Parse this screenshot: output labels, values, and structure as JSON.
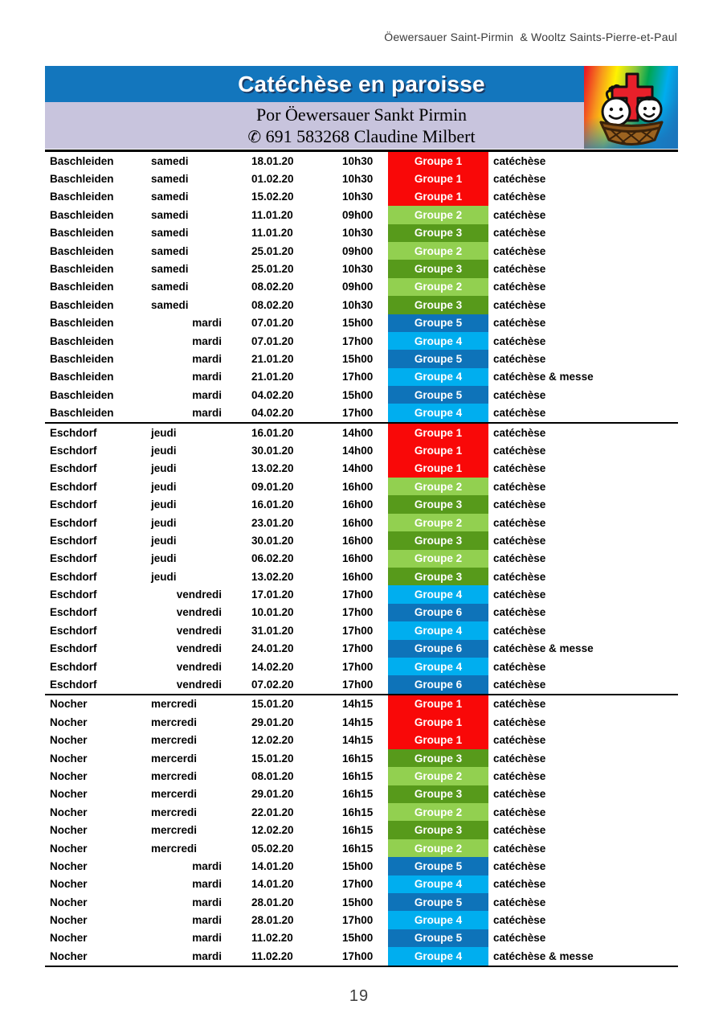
{
  "header": {
    "parishes": "Öewersauer Saint-Pirmin  & Wooltz Saints-Pierre-et-Paul"
  },
  "banner": {
    "title": "Catéchèse en paroisse",
    "subtitle_line1": "Por Öewersauer Sankt Pirmin",
    "phone_icon": "✆",
    "contact": "691 583268 Claudine Milbert"
  },
  "colors": {
    "banner_blue": "#1376bd",
    "banner_lavender": "#c8c4dd",
    "title_shadow": "#1a3a64",
    "g1": "#f90808",
    "g2": "#92d050",
    "g3": "#579a1b",
    "g4": "#00aeef",
    "g5": "#0e73b9",
    "g6": "#0e73b9"
  },
  "table": {
    "sections": [
      {
        "rows": [
          {
            "loc": "Baschleiden",
            "day1": "samedi",
            "day2": "",
            "date": "18.01.20",
            "time": "10h30",
            "group": "Groupe 1",
            "color": "g1",
            "act": "catéchèse"
          },
          {
            "loc": "Baschleiden",
            "day1": "samedi",
            "day2": "",
            "date": "01.02.20",
            "time": "10h30",
            "group": "Groupe 1",
            "color": "g1",
            "act": "catéchèse"
          },
          {
            "loc": "Baschleiden",
            "day1": "samedi",
            "day2": "",
            "date": "15.02.20",
            "time": "10h30",
            "group": "Groupe 1",
            "color": "g1",
            "act": "catéchèse"
          },
          {
            "loc": "Baschleiden",
            "day1": "samedi",
            "day2": "",
            "date": "11.01.20",
            "time": "09h00",
            "group": "Groupe 2",
            "color": "g2",
            "act": "catéchèse"
          },
          {
            "loc": "Baschleiden",
            "day1": "samedi",
            "day2": "",
            "date": "11.01.20",
            "time": "10h30",
            "group": "Groupe 3",
            "color": "g3",
            "act": "catéchèse"
          },
          {
            "loc": "Baschleiden",
            "day1": "samedi",
            "day2": "",
            "date": "25.01.20",
            "time": "09h00",
            "group": "Groupe 2",
            "color": "g2",
            "act": "catéchèse"
          },
          {
            "loc": "Baschleiden",
            "day1": "samedi",
            "day2": "",
            "date": "25.01.20",
            "time": "10h30",
            "group": "Groupe 3",
            "color": "g3",
            "act": "catéchèse"
          },
          {
            "loc": "Baschleiden",
            "day1": "samedi",
            "day2": "",
            "date": "08.02.20",
            "time": "09h00",
            "group": "Groupe 2",
            "color": "g2",
            "act": "catéchèse"
          },
          {
            "loc": "Baschleiden",
            "day1": "samedi",
            "day2": "",
            "date": "08.02.20",
            "time": "10h30",
            "group": "Groupe 3",
            "color": "g3",
            "act": "catéchèse"
          },
          {
            "loc": "Baschleiden",
            "day1": "",
            "day2": "mardi",
            "date": "07.01.20",
            "time": "15h00",
            "group": "Groupe 5",
            "color": "g5",
            "act": "catéchèse"
          },
          {
            "loc": "Baschleiden",
            "day1": "",
            "day2": "mardi",
            "date": "07.01.20",
            "time": "17h00",
            "group": "Groupe 4",
            "color": "g4",
            "act": "catéchèse"
          },
          {
            "loc": "Baschleiden",
            "day1": "",
            "day2": "mardi",
            "date": "21.01.20",
            "time": "15h00",
            "group": "Groupe 5",
            "color": "g5",
            "act": "catéchèse"
          },
          {
            "loc": "Baschleiden",
            "day1": "",
            "day2": "mardi",
            "date": "21.01.20",
            "time": "17h00",
            "group": "Groupe 4",
            "color": "g4",
            "act": "catéchèse & messe"
          },
          {
            "loc": "Baschleiden",
            "day1": "",
            "day2": "mardi",
            "date": "04.02.20",
            "time": "15h00",
            "group": "Groupe 5",
            "color": "g5",
            "act": "catéchèse"
          },
          {
            "loc": "Baschleiden",
            "day1": "",
            "day2": "mardi",
            "date": "04.02.20",
            "time": "17h00",
            "group": "Groupe 4",
            "color": "g4",
            "act": "catéchèse"
          }
        ]
      },
      {
        "rows": [
          {
            "loc": "Eschdorf",
            "day1": "jeudi",
            "day2": "",
            "date": "16.01.20",
            "time": "14h00",
            "group": "Groupe 1",
            "color": "g1",
            "act": "catéchèse"
          },
          {
            "loc": "Eschdorf",
            "day1": "jeudi",
            "day2": "",
            "date": "30.01.20",
            "time": "14h00",
            "group": "Groupe 1",
            "color": "g1",
            "act": "catéchèse"
          },
          {
            "loc": "Eschdorf",
            "day1": "jeudi",
            "day2": "",
            "date": "13.02.20",
            "time": "14h00",
            "group": "Groupe 1",
            "color": "g1",
            "act": "catéchèse"
          },
          {
            "loc": "Eschdorf",
            "day1": "jeudi",
            "day2": "",
            "date": "09.01.20",
            "time": "16h00",
            "group": "Groupe 2",
            "color": "g2",
            "act": "catéchèse"
          },
          {
            "loc": "Eschdorf",
            "day1": "jeudi",
            "day2": "",
            "date": "16.01.20",
            "time": "16h00",
            "group": "Groupe 3",
            "color": "g3",
            "act": "catéchèse"
          },
          {
            "loc": "Eschdorf",
            "day1": "jeudi",
            "day2": "",
            "date": "23.01.20",
            "time": "16h00",
            "group": "Groupe 2",
            "color": "g2",
            "act": "catéchèse"
          },
          {
            "loc": "Eschdorf",
            "day1": "jeudi",
            "day2": "",
            "date": "30.01.20",
            "time": "16h00",
            "group": "Groupe 3",
            "color": "g3",
            "act": "catéchèse"
          },
          {
            "loc": "Eschdorf",
            "day1": "jeudi",
            "day2": "",
            "date": "06.02.20",
            "time": "16h00",
            "group": "Groupe 2",
            "color": "g2",
            "act": "catéchèse"
          },
          {
            "loc": "Eschdorf",
            "day1": "jeudi",
            "day2": "",
            "date": "13.02.20",
            "time": "16h00",
            "group": "Groupe 3",
            "color": "g3",
            "act": "catéchèse"
          },
          {
            "loc": "Eschdorf",
            "day1": "",
            "day2": "vendredi",
            "date": "17.01.20",
            "time": "17h00",
            "group": "Groupe 4",
            "color": "g4",
            "act": "catéchèse"
          },
          {
            "loc": "Eschdorf",
            "day1": "",
            "day2": "vendredi",
            "date": "10.01.20",
            "time": "17h00",
            "group": "Groupe 6",
            "color": "g6",
            "act": "catéchèse"
          },
          {
            "loc": "Eschdorf",
            "day1": "",
            "day2": "vendredi",
            "date": "31.01.20",
            "time": "17h00",
            "group": "Groupe 4",
            "color": "g4",
            "act": "catéchèse"
          },
          {
            "loc": "Eschdorf",
            "day1": "",
            "day2": "vendredi",
            "date": "24.01.20",
            "time": "17h00",
            "group": "Groupe 6",
            "color": "g6",
            "act": "catéchèse & messe"
          },
          {
            "loc": "Eschdorf",
            "day1": "",
            "day2": "vendredi",
            "date": "14.02.20",
            "time": "17h00",
            "group": "Groupe 4",
            "color": "g4",
            "act": "catéchèse"
          },
          {
            "loc": "Eschdorf",
            "day1": "",
            "day2": "vendredi",
            "date": "07.02.20",
            "time": "17h00",
            "group": "Groupe 6",
            "color": "g6",
            "act": "catéchèse"
          }
        ]
      },
      {
        "rows": [
          {
            "loc": "Nocher",
            "day1": "mercredi",
            "day2": "",
            "date": "15.01.20",
            "time": "14h15",
            "group": "Groupe 1",
            "color": "g1",
            "act": "catéchèse"
          },
          {
            "loc": "Nocher",
            "day1": "mercredi",
            "day2": "",
            "date": "29.01.20",
            "time": "14h15",
            "group": "Groupe 1",
            "color": "g1",
            "act": "catéchèse"
          },
          {
            "loc": "Nocher",
            "day1": "mercredi",
            "day2": "",
            "date": "12.02.20",
            "time": "14h15",
            "group": "Groupe 1",
            "color": "g1",
            "act": "catéchèse"
          },
          {
            "loc": "Nocher",
            "day1": "mercerdi",
            "day2": "",
            "date": "15.01.20",
            "time": "16h15",
            "group": "Groupe 3",
            "color": "g3",
            "act": "catéchèse"
          },
          {
            "loc": "Nocher",
            "day1": "mercredi",
            "day2": "",
            "date": "08.01.20",
            "time": "16h15",
            "group": "Groupe 2",
            "color": "g2",
            "act": "catéchèse"
          },
          {
            "loc": "Nocher",
            "day1": "mercerdi",
            "day2": "",
            "date": "29.01.20",
            "time": "16h15",
            "group": "Groupe 3",
            "color": "g3",
            "act": "catéchèse"
          },
          {
            "loc": "Nocher",
            "day1": "mercredi",
            "day2": "",
            "date": "22.01.20",
            "time": "16h15",
            "group": "Groupe 2",
            "color": "g2",
            "act": "catéchèse"
          },
          {
            "loc": "Nocher",
            "day1": "mercredi",
            "day2": "",
            "date": "12.02.20",
            "time": "16h15",
            "group": "Groupe 3",
            "color": "g3",
            "act": "catéchèse"
          },
          {
            "loc": "Nocher",
            "day1": "mercredi",
            "day2": "",
            "date": "05.02.20",
            "time": "16h15",
            "group": "Groupe 2",
            "color": "g2",
            "act": "catéchèse"
          },
          {
            "loc": "Nocher",
            "day1": "",
            "day2": "mardi",
            "date": "14.01.20",
            "time": "15h00",
            "group": "Groupe 5",
            "color": "g5",
            "act": "catéchèse"
          },
          {
            "loc": "Nocher",
            "day1": "",
            "day2": "mardi",
            "date": "14.01.20",
            "time": "17h00",
            "group": "Groupe 4",
            "color": "g4",
            "act": "catéchèse"
          },
          {
            "loc": "Nocher",
            "day1": "",
            "day2": "mardi",
            "date": "28.01.20",
            "time": "15h00",
            "group": "Groupe 5",
            "color": "g5",
            "act": "catéchèse"
          },
          {
            "loc": "Nocher",
            "day1": "",
            "day2": "mardi",
            "date": "28.01.20",
            "time": "17h00",
            "group": "Groupe 4",
            "color": "g4",
            "act": "catéchèse"
          },
          {
            "loc": "Nocher",
            "day1": "",
            "day2": "mardi",
            "date": "11.02.20",
            "time": "15h00",
            "group": "Groupe 5",
            "color": "g5",
            "act": "catéchèse"
          },
          {
            "loc": "Nocher",
            "day1": "",
            "day2": "mardi",
            "date": "11.02.20",
            "time": "17h00",
            "group": "Groupe 4",
            "color": "g4",
            "act": "catéchèse & messe"
          }
        ]
      }
    ]
  },
  "footer": {
    "page_number": "19"
  }
}
